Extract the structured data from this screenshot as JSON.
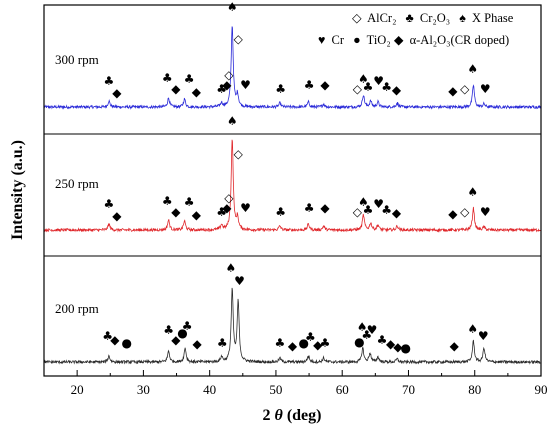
{
  "chart_data": {
    "type": "line",
    "xlabel_main": "2 ",
    "xlabel_theta": "θ",
    "xlabel_unit": " (deg)",
    "ylabel": "Intensity (a.u.)",
    "xlim": [
      15,
      90
    ],
    "xticks": [
      "20",
      "30",
      "40",
      "50",
      "60",
      "70",
      "80",
      "90"
    ],
    "legend": {
      "row1": [
        {
          "symbol": "◇",
          "label": "AlCr₂"
        },
        {
          "symbol": "♣",
          "label": "Cr₂O₃"
        },
        {
          "symbol": "♠",
          "label": "X Phase"
        }
      ],
      "row2": [
        {
          "symbol": "♥",
          "label": "Cr"
        },
        {
          "symbol": "●",
          "label": "TiO₂"
        },
        {
          "symbol": "◆",
          "label": "α-Al₂O₃(CR doped)"
        }
      ]
    },
    "series": [
      {
        "name": "300 rpm",
        "color": "#2a2ad8",
        "peaks": [
          [
            24.8,
            0.06
          ],
          [
            33.8,
            0.09
          ],
          [
            36.2,
            0.08
          ],
          [
            41.8,
            0.04
          ],
          [
            43.4,
            0.82
          ],
          [
            44.2,
            0.12
          ],
          [
            50.6,
            0.04
          ],
          [
            54.9,
            0.05
          ],
          [
            57.2,
            0.03
          ],
          [
            63.2,
            0.12
          ],
          [
            64.3,
            0.06
          ],
          [
            65.4,
            0.05
          ],
          [
            68.3,
            0.04
          ],
          [
            79.8,
            0.22
          ],
          [
            81.4,
            0.03
          ]
        ],
        "markers": [
          {
            "s": "♣",
            "x": 24.8,
            "y": 0.22
          },
          {
            "s": "◆",
            "x": 26.0,
            "y": 0.1
          },
          {
            "s": "♣",
            "x": 33.6,
            "y": 0.25
          },
          {
            "s": "◆",
            "x": 34.9,
            "y": 0.14
          },
          {
            "s": "♣",
            "x": 36.9,
            "y": 0.24
          },
          {
            "s": "◆",
            "x": 38.0,
            "y": 0.11
          },
          {
            "s": "♣",
            "x": 41.8,
            "y": 0.14
          },
          {
            "s": "◆",
            "x": 42.6,
            "y": 0.18
          },
          {
            "s": "◇",
            "x": 42.9,
            "y": 0.28
          },
          {
            "s": "♠",
            "x": 43.4,
            "y": 0.96
          },
          {
            "s": "◇",
            "x": 44.3,
            "y": 0.64
          },
          {
            "s": "♥",
            "x": 45.4,
            "y": 0.18
          },
          {
            "s": "♣",
            "x": 50.7,
            "y": 0.14
          },
          {
            "s": "♣",
            "x": 55.0,
            "y": 0.18
          },
          {
            "s": "◆",
            "x": 57.4,
            "y": 0.18
          },
          {
            "s": "◇",
            "x": 62.3,
            "y": 0.14
          },
          {
            "s": "♠",
            "x": 63.2,
            "y": 0.24
          },
          {
            "s": "♣",
            "x": 63.9,
            "y": 0.16
          },
          {
            "s": "♥",
            "x": 65.5,
            "y": 0.22
          },
          {
            "s": "♣",
            "x": 66.7,
            "y": 0.16
          },
          {
            "s": "◆",
            "x": 68.2,
            "y": 0.13
          },
          {
            "s": "◆",
            "x": 76.7,
            "y": 0.12
          },
          {
            "s": "◇",
            "x": 78.5,
            "y": 0.14
          },
          {
            "s": "♠",
            "x": 79.7,
            "y": 0.34
          },
          {
            "s": "♥",
            "x": 81.6,
            "y": 0.14
          }
        ]
      },
      {
        "name": "250 rpm",
        "color": "#e0282c",
        "peaks": [
          [
            24.8,
            0.06
          ],
          [
            33.8,
            0.1
          ],
          [
            36.2,
            0.09
          ],
          [
            41.8,
            0.05
          ],
          [
            43.4,
            0.92
          ],
          [
            44.2,
            0.12
          ],
          [
            50.6,
            0.04
          ],
          [
            54.9,
            0.06
          ],
          [
            57.2,
            0.04
          ],
          [
            63.2,
            0.15
          ],
          [
            64.3,
            0.07
          ],
          [
            65.4,
            0.05
          ],
          [
            68.3,
            0.04
          ],
          [
            79.8,
            0.22
          ],
          [
            81.4,
            0.03
          ]
        ],
        "markers": [
          {
            "s": "♣",
            "x": 24.8,
            "y": 0.22
          },
          {
            "s": "◆",
            "x": 26.0,
            "y": 0.1
          },
          {
            "s": "♣",
            "x": 33.6,
            "y": 0.25
          },
          {
            "s": "◆",
            "x": 34.9,
            "y": 0.14
          },
          {
            "s": "♣",
            "x": 36.9,
            "y": 0.24
          },
          {
            "s": "◆",
            "x": 38.0,
            "y": 0.11
          },
          {
            "s": "♣",
            "x": 41.8,
            "y": 0.14
          },
          {
            "s": "◆",
            "x": 42.6,
            "y": 0.18
          },
          {
            "s": "◇",
            "x": 42.9,
            "y": 0.28
          },
          {
            "s": "♠",
            "x": 43.4,
            "y": 1.05
          },
          {
            "s": "◇",
            "x": 44.3,
            "y": 0.72
          },
          {
            "s": "♥",
            "x": 45.4,
            "y": 0.18
          },
          {
            "s": "♣",
            "x": 50.7,
            "y": 0.14
          },
          {
            "s": "♣",
            "x": 55.0,
            "y": 0.18
          },
          {
            "s": "◆",
            "x": 57.4,
            "y": 0.18
          },
          {
            "s": "◇",
            "x": 62.3,
            "y": 0.14
          },
          {
            "s": "♠",
            "x": 63.2,
            "y": 0.24
          },
          {
            "s": "♣",
            "x": 63.9,
            "y": 0.16
          },
          {
            "s": "♥",
            "x": 65.5,
            "y": 0.22
          },
          {
            "s": "♣",
            "x": 66.7,
            "y": 0.16
          },
          {
            "s": "◆",
            "x": 68.2,
            "y": 0.13
          },
          {
            "s": "◆",
            "x": 76.7,
            "y": 0.12
          },
          {
            "s": "◇",
            "x": 78.5,
            "y": 0.14
          },
          {
            "s": "♠",
            "x": 79.7,
            "y": 0.34
          },
          {
            "s": "♥",
            "x": 81.6,
            "y": 0.14
          }
        ]
      },
      {
        "name": "200 rpm",
        "color": "#2b2b2b",
        "peaks": [
          [
            24.8,
            0.06
          ],
          [
            33.8,
            0.11
          ],
          [
            36.3,
            0.14
          ],
          [
            41.8,
            0.05
          ],
          [
            43.4,
            0.72
          ],
          [
            44.3,
            0.6
          ],
          [
            50.6,
            0.04
          ],
          [
            54.9,
            0.06
          ],
          [
            57.2,
            0.04
          ],
          [
            63.1,
            0.14
          ],
          [
            64.2,
            0.09
          ],
          [
            65.4,
            0.05
          ],
          [
            68.3,
            0.03
          ],
          [
            79.8,
            0.21
          ],
          [
            81.4,
            0.14
          ]
        ],
        "markers": [
          {
            "s": "♣",
            "x": 24.6,
            "y": 0.22
          },
          {
            "s": "◆",
            "x": 25.7,
            "y": 0.18
          },
          {
            "s": "●",
            "x": 27.5,
            "y": 0.15
          },
          {
            "s": "♣",
            "x": 33.8,
            "y": 0.28
          },
          {
            "s": "◆",
            "x": 34.9,
            "y": 0.18
          },
          {
            "s": "●",
            "x": 35.9,
            "y": 0.25
          },
          {
            "s": "♣",
            "x": 36.6,
            "y": 0.32
          },
          {
            "s": "◆",
            "x": 38.1,
            "y": 0.14
          },
          {
            "s": "♣",
            "x": 41.9,
            "y": 0.15
          },
          {
            "s": "♠",
            "x": 43.2,
            "y": 0.9
          },
          {
            "s": "♥",
            "x": 44.5,
            "y": 0.77
          },
          {
            "s": "♣",
            "x": 50.6,
            "y": 0.15
          },
          {
            "s": "◆",
            "x": 52.5,
            "y": 0.12
          },
          {
            "s": "●",
            "x": 54.2,
            "y": 0.15
          },
          {
            "s": "♣",
            "x": 55.2,
            "y": 0.21
          },
          {
            "s": "◆",
            "x": 56.3,
            "y": 0.13
          },
          {
            "s": "♣",
            "x": 57.4,
            "y": 0.15
          },
          {
            "s": "●",
            "x": 62.6,
            "y": 0.16
          },
          {
            "s": "♠",
            "x": 63.0,
            "y": 0.31
          },
          {
            "s": "♣",
            "x": 63.7,
            "y": 0.23
          },
          {
            "s": "♥",
            "x": 64.5,
            "y": 0.28
          },
          {
            "s": "♣",
            "x": 66.0,
            "y": 0.18
          },
          {
            "s": "◆",
            "x": 67.3,
            "y": 0.14
          },
          {
            "s": "◆",
            "x": 68.4,
            "y": 0.11
          },
          {
            "s": "●",
            "x": 69.6,
            "y": 0.1
          },
          {
            "s": "◆",
            "x": 76.9,
            "y": 0.12
          },
          {
            "s": "♠",
            "x": 79.7,
            "y": 0.29
          },
          {
            "s": "♥",
            "x": 81.3,
            "y": 0.22
          }
        ]
      }
    ]
  }
}
